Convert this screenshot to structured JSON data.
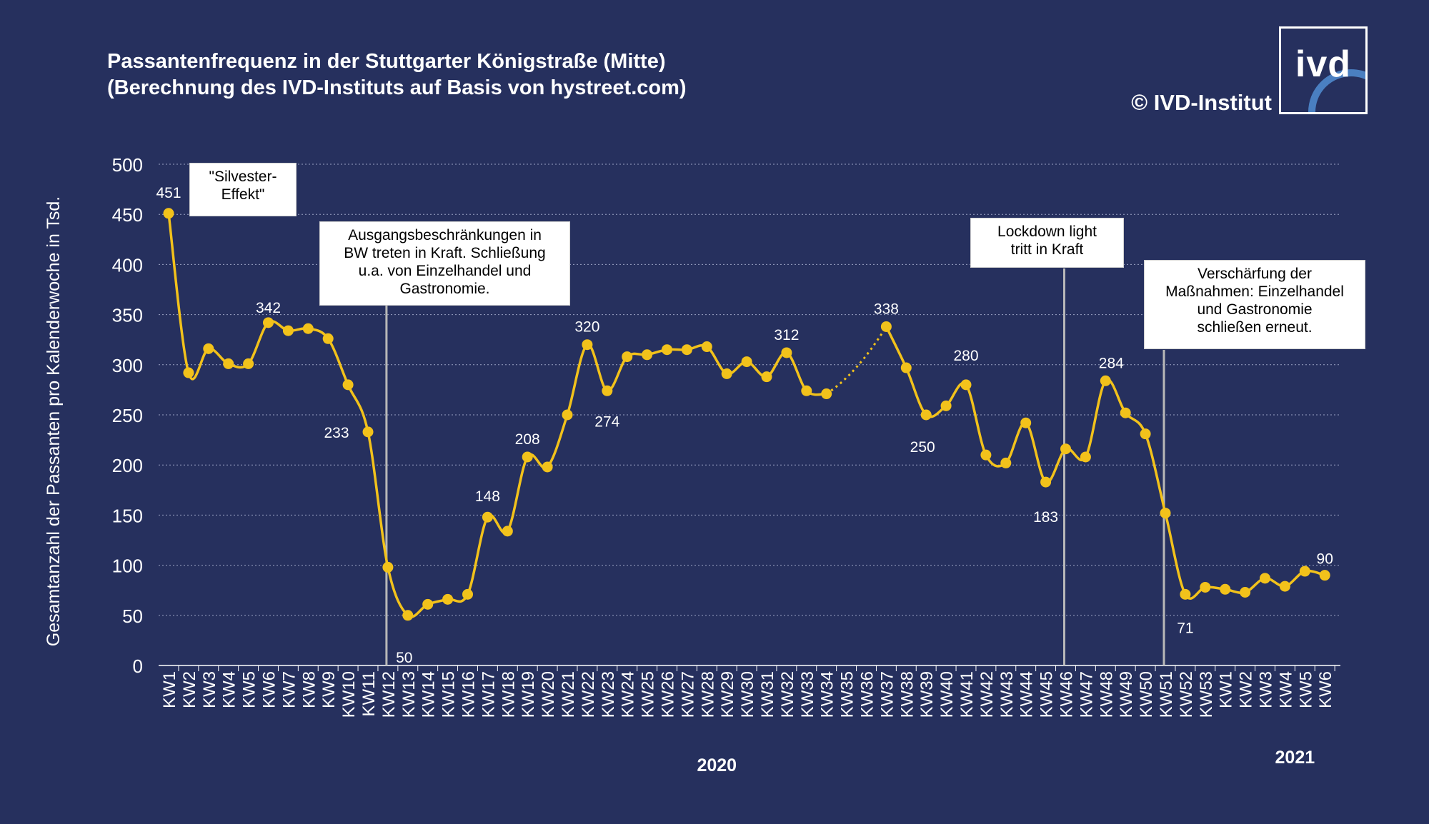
{
  "header": {
    "title_line1": "Passantenfrequenz in der Stuttgarter Königstraße (Mitte)",
    "title_line2": "(Berechnung des IVD-Instituts auf Basis von hystreet.com)",
    "copyright": "© IVD-Institut",
    "logo_text": "ivd"
  },
  "colors": {
    "background": "#26305e",
    "line": "#f2c21b",
    "text": "#ffffff",
    "grid": "#9aa2c4"
  },
  "annotations": {
    "silvester": "\"Silvester-\nEffekt\"",
    "ausgang": "Ausgangsbeschränkungen in\nBW treten in Kraft. Schließung\nu.a. von Einzelhandel und\nGastronomie.",
    "lockdown": "Lockdown light\ntritt in Kraft",
    "verschaerfung": "Verschärfung der\nMaßnahmen: Einzelhandel\nund Gastronomie\nschließen erneut."
  },
  "chart_data": {
    "type": "line",
    "ylabel": "Gesamtanzahl der Passanten pro  Kalenderwoche in Tsd.",
    "ylim": [
      0,
      500
    ],
    "yticks": [
      0,
      50,
      100,
      150,
      200,
      250,
      300,
      350,
      400,
      450,
      500
    ],
    "grid": true,
    "year_labels": [
      {
        "label": "2020",
        "under": "KW28"
      },
      {
        "label": "2021",
        "under": "KW4"
      }
    ],
    "categories": [
      "KW1",
      "KW2",
      "KW3",
      "KW4",
      "KW5",
      "KW6",
      "KW7",
      "KW8",
      "KW9",
      "KW10",
      "KW11",
      "KW12",
      "KW13",
      "KW14",
      "KW15",
      "KW16",
      "KW17",
      "KW18",
      "KW19",
      "KW20",
      "KW21",
      "KW22",
      "KW23",
      "KW24",
      "KW25",
      "KW26",
      "KW27",
      "KW28",
      "KW29",
      "KW30",
      "KW31",
      "KW32",
      "KW33",
      "KW34",
      "KW35",
      "KW36",
      "KW37",
      "KW38",
      "KW39",
      "KW40",
      "KW41",
      "KW42",
      "KW43",
      "KW44",
      "KW45",
      "KW46",
      "KW47",
      "KW48",
      "KW49",
      "KW50",
      "KW51",
      "KW52",
      "KW53",
      "KW1",
      "KW2",
      "KW3",
      "KW4",
      "KW5",
      "KW6"
    ],
    "values": [
      451,
      292,
      316,
      301,
      301,
      342,
      334,
      336,
      326,
      280,
      233,
      98,
      50,
      61,
      66,
      71,
      148,
      134,
      208,
      198,
      250,
      320,
      274,
      308,
      310,
      315,
      315,
      318,
      291,
      303,
      288,
      312,
      274,
      271,
      null,
      null,
      338,
      297,
      250,
      259,
      280,
      210,
      202,
      242,
      183,
      216,
      208,
      284,
      252,
      231,
      152,
      71,
      78,
      76,
      73,
      87,
      79,
      94,
      90
    ],
    "data_labels": [
      {
        "index": 0,
        "text": "451"
      },
      {
        "index": 5,
        "text": "342"
      },
      {
        "index": 10,
        "text": "233"
      },
      {
        "index": 12,
        "text": "50"
      },
      {
        "index": 16,
        "text": "148"
      },
      {
        "index": 18,
        "text": "208"
      },
      {
        "index": 21,
        "text": "320"
      },
      {
        "index": 22,
        "text": "274"
      },
      {
        "index": 31,
        "text": "312"
      },
      {
        "index": 36,
        "text": "338"
      },
      {
        "index": 38,
        "text": "250"
      },
      {
        "index": 40,
        "text": "280"
      },
      {
        "index": 44,
        "text": "183"
      },
      {
        "index": 47,
        "text": "284"
      },
      {
        "index": 51,
        "text": "71"
      },
      {
        "index": 58,
        "text": "90"
      }
    ],
    "missing_weeks_note": "KW35–KW36 no data (dotted interpolation)"
  }
}
